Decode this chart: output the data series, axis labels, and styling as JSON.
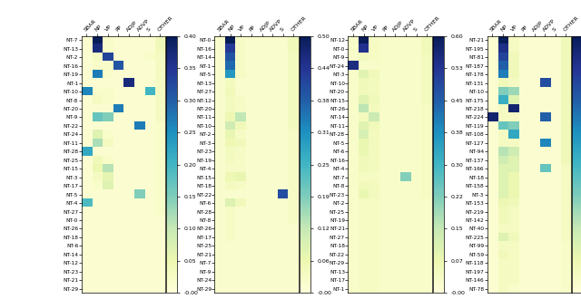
{
  "columns": [
    "SBAR",
    "NP",
    "VP",
    "PP",
    "ADJP",
    "ADVP",
    "S",
    "OTHER"
  ],
  "panel1": {
    "rows": [
      "NT-7",
      "NT-13",
      "NT-2",
      "NT-16",
      "NT-19",
      "NT-1",
      "NT-10",
      "NT-8",
      "NT-20",
      "NT-9",
      "NT-22",
      "NT-24",
      "NT-11",
      "NT-28",
      "NT-25",
      "NT-15",
      "NT-3",
      "NT-17",
      "NT-5",
      "NT-4",
      "NT-27",
      "NT-0",
      "NT-26",
      "NT-18",
      "NT-6",
      "NT-14",
      "NT-12",
      "NT-23",
      "NT-21",
      "NT-29"
    ],
    "vmax": 0.4,
    "data": [
      [
        0.01,
        0.4,
        0.02,
        0.01,
        0.01,
        0.01,
        0.01,
        0.04
      ],
      [
        0.01,
        0.37,
        0.02,
        0.01,
        0.01,
        0.01,
        0.01,
        0.04
      ],
      [
        0.01,
        0.03,
        0.33,
        0.01,
        0.01,
        0.01,
        0.02,
        0.03
      ],
      [
        0.01,
        0.02,
        0.02,
        0.31,
        0.01,
        0.01,
        0.01,
        0.03
      ],
      [
        0.01,
        0.27,
        0.02,
        0.01,
        0.01,
        0.01,
        0.01,
        0.03
      ],
      [
        0.01,
        0.01,
        0.01,
        0.01,
        0.37,
        0.01,
        0.01,
        0.03
      ],
      [
        0.26,
        0.02,
        0.02,
        0.01,
        0.01,
        0.01,
        0.2,
        0.03
      ],
      [
        0.01,
        0.03,
        0.02,
        0.01,
        0.01,
        0.01,
        0.01,
        0.03
      ],
      [
        0.01,
        0.01,
        0.01,
        0.27,
        0.01,
        0.01,
        0.01,
        0.03
      ],
      [
        0.01,
        0.17,
        0.15,
        0.01,
        0.01,
        0.01,
        0.01,
        0.03
      ],
      [
        0.01,
        0.01,
        0.01,
        0.01,
        0.01,
        0.27,
        0.01,
        0.02
      ],
      [
        0.01,
        0.07,
        0.02,
        0.01,
        0.01,
        0.01,
        0.01,
        0.02
      ],
      [
        0.01,
        0.12,
        0.03,
        0.01,
        0.01,
        0.01,
        0.01,
        0.02
      ],
      [
        0.22,
        0.01,
        0.01,
        0.01,
        0.01,
        0.01,
        0.01,
        0.02
      ],
      [
        0.01,
        0.04,
        0.02,
        0.01,
        0.01,
        0.01,
        0.01,
        0.02
      ],
      [
        0.01,
        0.05,
        0.11,
        0.01,
        0.01,
        0.01,
        0.01,
        0.02
      ],
      [
        0.01,
        0.03,
        0.06,
        0.01,
        0.01,
        0.01,
        0.01,
        0.02
      ],
      [
        0.01,
        0.02,
        0.07,
        0.01,
        0.01,
        0.01,
        0.01,
        0.02
      ],
      [
        0.01,
        0.01,
        0.01,
        0.01,
        0.01,
        0.15,
        0.01,
        0.02
      ],
      [
        0.19,
        0.01,
        0.01,
        0.01,
        0.01,
        0.01,
        0.01,
        0.02
      ],
      [
        0.01,
        0.01,
        0.01,
        0.01,
        0.01,
        0.01,
        0.01,
        0.02
      ],
      [
        0.01,
        0.01,
        0.01,
        0.01,
        0.01,
        0.01,
        0.01,
        0.01
      ],
      [
        0.01,
        0.01,
        0.01,
        0.01,
        0.01,
        0.01,
        0.01,
        0.01
      ],
      [
        0.01,
        0.01,
        0.01,
        0.01,
        0.01,
        0.01,
        0.01,
        0.01
      ],
      [
        0.01,
        0.01,
        0.01,
        0.01,
        0.01,
        0.01,
        0.01,
        0.01
      ],
      [
        0.01,
        0.01,
        0.01,
        0.01,
        0.01,
        0.01,
        0.01,
        0.01
      ],
      [
        0.01,
        0.01,
        0.01,
        0.01,
        0.01,
        0.01,
        0.01,
        0.01
      ],
      [
        0.01,
        0.01,
        0.01,
        0.01,
        0.01,
        0.01,
        0.01,
        0.01
      ],
      [
        0.01,
        0.01,
        0.01,
        0.01,
        0.01,
        0.01,
        0.01,
        0.01
      ],
      [
        0.01,
        0.01,
        0.01,
        0.01,
        0.01,
        0.01,
        0.01,
        0.01
      ]
    ]
  },
  "panel2": {
    "rows": [
      "NT-0",
      "NT-16",
      "NT-14",
      "NT-1",
      "NT-5",
      "NT-13",
      "NT-27",
      "NT-12",
      "NT-20",
      "NT-11",
      "NT-10",
      "NT-2",
      "NT-3",
      "NT-23",
      "NT-19",
      "NT-4",
      "NT-15",
      "NT-18",
      "NT-22",
      "NT-6",
      "NT-28",
      "NT-8",
      "NT-26",
      "NT-17",
      "NT-25",
      "NT-21",
      "NT-7",
      "NT-9",
      "NT-24",
      "NT-29"
    ],
    "vmax": 0.5,
    "data": [
      [
        0.02,
        0.5,
        0.03,
        0.02,
        0.02,
        0.02,
        0.02,
        0.05
      ],
      [
        0.02,
        0.43,
        0.03,
        0.02,
        0.02,
        0.02,
        0.02,
        0.05
      ],
      [
        0.02,
        0.39,
        0.03,
        0.02,
        0.02,
        0.02,
        0.02,
        0.04
      ],
      [
        0.02,
        0.36,
        0.03,
        0.02,
        0.02,
        0.02,
        0.02,
        0.04
      ],
      [
        0.02,
        0.3,
        0.03,
        0.02,
        0.02,
        0.02,
        0.02,
        0.04
      ],
      [
        0.02,
        0.04,
        0.02,
        0.02,
        0.02,
        0.02,
        0.02,
        0.04
      ],
      [
        0.02,
        0.05,
        0.02,
        0.02,
        0.02,
        0.02,
        0.02,
        0.04
      ],
      [
        0.02,
        0.04,
        0.03,
        0.02,
        0.02,
        0.02,
        0.02,
        0.04
      ],
      [
        0.02,
        0.04,
        0.03,
        0.02,
        0.02,
        0.02,
        0.02,
        0.04
      ],
      [
        0.02,
        0.06,
        0.13,
        0.02,
        0.02,
        0.02,
        0.02,
        0.04
      ],
      [
        0.02,
        0.11,
        0.05,
        0.02,
        0.02,
        0.02,
        0.02,
        0.04
      ],
      [
        0.02,
        0.07,
        0.03,
        0.02,
        0.02,
        0.02,
        0.02,
        0.03
      ],
      [
        0.02,
        0.06,
        0.05,
        0.02,
        0.02,
        0.02,
        0.02,
        0.03
      ],
      [
        0.02,
        0.04,
        0.03,
        0.02,
        0.02,
        0.02,
        0.02,
        0.03
      ],
      [
        0.02,
        0.04,
        0.03,
        0.02,
        0.02,
        0.02,
        0.02,
        0.03
      ],
      [
        0.02,
        0.03,
        0.03,
        0.02,
        0.02,
        0.02,
        0.02,
        0.03
      ],
      [
        0.02,
        0.06,
        0.07,
        0.02,
        0.02,
        0.02,
        0.02,
        0.03
      ],
      [
        0.02,
        0.04,
        0.03,
        0.02,
        0.02,
        0.02,
        0.02,
        0.03
      ],
      [
        0.02,
        0.02,
        0.02,
        0.02,
        0.02,
        0.02,
        0.4,
        0.03
      ],
      [
        0.02,
        0.09,
        0.05,
        0.02,
        0.02,
        0.02,
        0.02,
        0.03
      ],
      [
        0.02,
        0.03,
        0.02,
        0.02,
        0.02,
        0.02,
        0.02,
        0.03
      ],
      [
        0.02,
        0.03,
        0.02,
        0.02,
        0.02,
        0.02,
        0.02,
        0.03
      ],
      [
        0.02,
        0.03,
        0.02,
        0.02,
        0.02,
        0.02,
        0.02,
        0.02
      ],
      [
        0.02,
        0.03,
        0.02,
        0.02,
        0.02,
        0.02,
        0.02,
        0.02
      ],
      [
        0.02,
        0.02,
        0.02,
        0.02,
        0.02,
        0.02,
        0.02,
        0.02
      ],
      [
        0.02,
        0.02,
        0.02,
        0.02,
        0.02,
        0.02,
        0.02,
        0.02
      ],
      [
        0.02,
        0.02,
        0.02,
        0.02,
        0.02,
        0.02,
        0.02,
        0.02
      ],
      [
        0.02,
        0.02,
        0.02,
        0.02,
        0.02,
        0.02,
        0.02,
        0.02
      ],
      [
        0.02,
        0.02,
        0.02,
        0.02,
        0.02,
        0.02,
        0.02,
        0.02
      ],
      [
        0.02,
        0.02,
        0.02,
        0.02,
        0.02,
        0.02,
        0.02,
        0.02
      ]
    ]
  },
  "panel3": {
    "rows": [
      "NT-12",
      "NT-0",
      "NT-9",
      "NT-24",
      "NT-3",
      "NT-10",
      "NT-20",
      "NT-15",
      "NT-26",
      "NT-14",
      "NT-11",
      "NT-28",
      "NT-5",
      "NT-6",
      "NT-16",
      "NT-4",
      "NT-7",
      "NT-8",
      "NT-23",
      "NT-2",
      "NT-25",
      "NT-19",
      "NT-21",
      "NT-27",
      "NT-18",
      "NT-22",
      "NT-29",
      "NT-13",
      "NT-17",
      "NT-1"
    ],
    "vmax": 0.6,
    "data": [
      [
        0.03,
        0.6,
        0.04,
        0.03,
        0.03,
        0.03,
        0.03,
        0.06
      ],
      [
        0.03,
        0.53,
        0.04,
        0.03,
        0.03,
        0.03,
        0.03,
        0.06
      ],
      [
        0.03,
        0.05,
        0.04,
        0.03,
        0.03,
        0.03,
        0.03,
        0.05
      ],
      [
        0.55,
        0.03,
        0.03,
        0.03,
        0.03,
        0.03,
        0.03,
        0.05
      ],
      [
        0.03,
        0.1,
        0.06,
        0.03,
        0.03,
        0.03,
        0.03,
        0.05
      ],
      [
        0.03,
        0.06,
        0.05,
        0.03,
        0.03,
        0.03,
        0.03,
        0.05
      ],
      [
        0.03,
        0.06,
        0.05,
        0.03,
        0.03,
        0.03,
        0.03,
        0.05
      ],
      [
        0.03,
        0.1,
        0.06,
        0.03,
        0.03,
        0.03,
        0.03,
        0.05
      ],
      [
        0.03,
        0.16,
        0.05,
        0.03,
        0.03,
        0.03,
        0.03,
        0.04
      ],
      [
        0.03,
        0.05,
        0.14,
        0.03,
        0.03,
        0.03,
        0.03,
        0.04
      ],
      [
        0.03,
        0.1,
        0.06,
        0.03,
        0.03,
        0.03,
        0.03,
        0.04
      ],
      [
        0.03,
        0.12,
        0.05,
        0.03,
        0.03,
        0.03,
        0.03,
        0.04
      ],
      [
        0.03,
        0.08,
        0.05,
        0.03,
        0.03,
        0.03,
        0.03,
        0.04
      ],
      [
        0.03,
        0.08,
        0.05,
        0.03,
        0.03,
        0.03,
        0.03,
        0.04
      ],
      [
        0.03,
        0.06,
        0.05,
        0.03,
        0.03,
        0.03,
        0.03,
        0.04
      ],
      [
        0.03,
        0.06,
        0.05,
        0.03,
        0.03,
        0.03,
        0.03,
        0.04
      ],
      [
        0.03,
        0.04,
        0.04,
        0.03,
        0.03,
        0.22,
        0.03,
        0.04
      ],
      [
        0.03,
        0.06,
        0.05,
        0.03,
        0.03,
        0.03,
        0.03,
        0.04
      ],
      [
        0.03,
        0.08,
        0.05,
        0.03,
        0.03,
        0.03,
        0.03,
        0.04
      ],
      [
        0.03,
        0.04,
        0.04,
        0.03,
        0.03,
        0.03,
        0.03,
        0.03
      ],
      [
        0.03,
        0.04,
        0.04,
        0.03,
        0.03,
        0.03,
        0.03,
        0.03
      ],
      [
        0.03,
        0.04,
        0.04,
        0.03,
        0.03,
        0.03,
        0.03,
        0.03
      ],
      [
        0.03,
        0.04,
        0.04,
        0.03,
        0.03,
        0.03,
        0.03,
        0.03
      ],
      [
        0.03,
        0.04,
        0.04,
        0.03,
        0.03,
        0.03,
        0.03,
        0.03
      ],
      [
        0.03,
        0.04,
        0.04,
        0.03,
        0.03,
        0.03,
        0.03,
        0.03
      ],
      [
        0.03,
        0.04,
        0.04,
        0.03,
        0.03,
        0.03,
        0.03,
        0.03
      ],
      [
        0.03,
        0.04,
        0.04,
        0.03,
        0.03,
        0.03,
        0.03,
        0.03
      ],
      [
        0.03,
        0.04,
        0.04,
        0.03,
        0.03,
        0.03,
        0.03,
        0.03
      ],
      [
        0.03,
        0.04,
        0.04,
        0.03,
        0.03,
        0.03,
        0.03,
        0.03
      ],
      [
        0.03,
        0.04,
        0.04,
        0.03,
        0.03,
        0.03,
        0.03,
        0.03
      ]
    ]
  },
  "panel4": {
    "rows": [
      "NT-21",
      "NT-195",
      "NT-81",
      "NT-187",
      "NT-178",
      "NT-131",
      "NT-10",
      "NT-175",
      "NT-218",
      "NT-224",
      "NT-119",
      "NT-108",
      "NT-127",
      "NT-94",
      "NT-137",
      "NT-166",
      "NT-18",
      "NT-158",
      "NT-3",
      "NT-153",
      "NT-219",
      "NT-142",
      "NT-40",
      "NT-225",
      "NT-99",
      "NT-59",
      "NT-118",
      "NT-197",
      "NT-146",
      "NT-78"
    ],
    "vmax": 0.4,
    "data": [
      [
        0.01,
        0.4,
        0.03,
        0.01,
        0.01,
        0.01,
        0.01,
        0.04
      ],
      [
        0.01,
        0.36,
        0.03,
        0.01,
        0.01,
        0.01,
        0.01,
        0.04
      ],
      [
        0.01,
        0.33,
        0.04,
        0.01,
        0.01,
        0.01,
        0.01,
        0.04
      ],
      [
        0.01,
        0.3,
        0.04,
        0.01,
        0.01,
        0.01,
        0.01,
        0.04
      ],
      [
        0.01,
        0.27,
        0.04,
        0.01,
        0.01,
        0.01,
        0.01,
        0.04
      ],
      [
        0.01,
        0.04,
        0.03,
        0.01,
        0.01,
        0.32,
        0.01,
        0.04
      ],
      [
        0.01,
        0.15,
        0.13,
        0.01,
        0.01,
        0.01,
        0.01,
        0.04
      ],
      [
        0.01,
        0.21,
        0.07,
        0.01,
        0.01,
        0.01,
        0.01,
        0.04
      ],
      [
        0.01,
        0.03,
        0.38,
        0.01,
        0.01,
        0.01,
        0.01,
        0.04
      ],
      [
        0.38,
        0.03,
        0.03,
        0.01,
        0.01,
        0.3,
        0.01,
        0.04
      ],
      [
        0.01,
        0.17,
        0.15,
        0.01,
        0.01,
        0.01,
        0.01,
        0.04
      ],
      [
        0.01,
        0.03,
        0.22,
        0.01,
        0.01,
        0.01,
        0.01,
        0.04
      ],
      [
        0.01,
        0.03,
        0.03,
        0.01,
        0.01,
        0.26,
        0.01,
        0.04
      ],
      [
        0.01,
        0.11,
        0.09,
        0.01,
        0.01,
        0.01,
        0.01,
        0.04
      ],
      [
        0.01,
        0.09,
        0.07,
        0.01,
        0.01,
        0.01,
        0.01,
        0.04
      ],
      [
        0.01,
        0.07,
        0.07,
        0.01,
        0.01,
        0.17,
        0.01,
        0.03
      ],
      [
        0.01,
        0.07,
        0.05,
        0.01,
        0.01,
        0.01,
        0.01,
        0.03
      ],
      [
        0.01,
        0.07,
        0.05,
        0.01,
        0.01,
        0.01,
        0.01,
        0.03
      ],
      [
        0.01,
        0.07,
        0.05,
        0.01,
        0.01,
        0.01,
        0.01,
        0.03
      ],
      [
        0.01,
        0.05,
        0.04,
        0.01,
        0.01,
        0.01,
        0.01,
        0.03
      ],
      [
        0.01,
        0.04,
        0.03,
        0.01,
        0.01,
        0.01,
        0.01,
        0.03
      ],
      [
        0.01,
        0.04,
        0.03,
        0.01,
        0.01,
        0.01,
        0.01,
        0.03
      ],
      [
        0.01,
        0.03,
        0.03,
        0.01,
        0.01,
        0.01,
        0.01,
        0.03
      ],
      [
        0.01,
        0.07,
        0.04,
        0.01,
        0.01,
        0.01,
        0.01,
        0.03
      ],
      [
        0.01,
        0.03,
        0.03,
        0.01,
        0.01,
        0.01,
        0.01,
        0.02
      ],
      [
        0.01,
        0.04,
        0.03,
        0.01,
        0.01,
        0.01,
        0.01,
        0.02
      ],
      [
        0.01,
        0.03,
        0.03,
        0.01,
        0.01,
        0.01,
        0.01,
        0.02
      ],
      [
        0.01,
        0.03,
        0.03,
        0.01,
        0.01,
        0.01,
        0.01,
        0.02
      ],
      [
        0.01,
        0.03,
        0.03,
        0.01,
        0.01,
        0.01,
        0.01,
        0.02
      ],
      [
        0.01,
        0.03,
        0.02,
        0.01,
        0.01,
        0.01,
        0.01,
        0.02
      ]
    ]
  },
  "cmap": "YlGnBu",
  "fig_width": 6.4,
  "fig_height": 3.3,
  "dpi": 100
}
